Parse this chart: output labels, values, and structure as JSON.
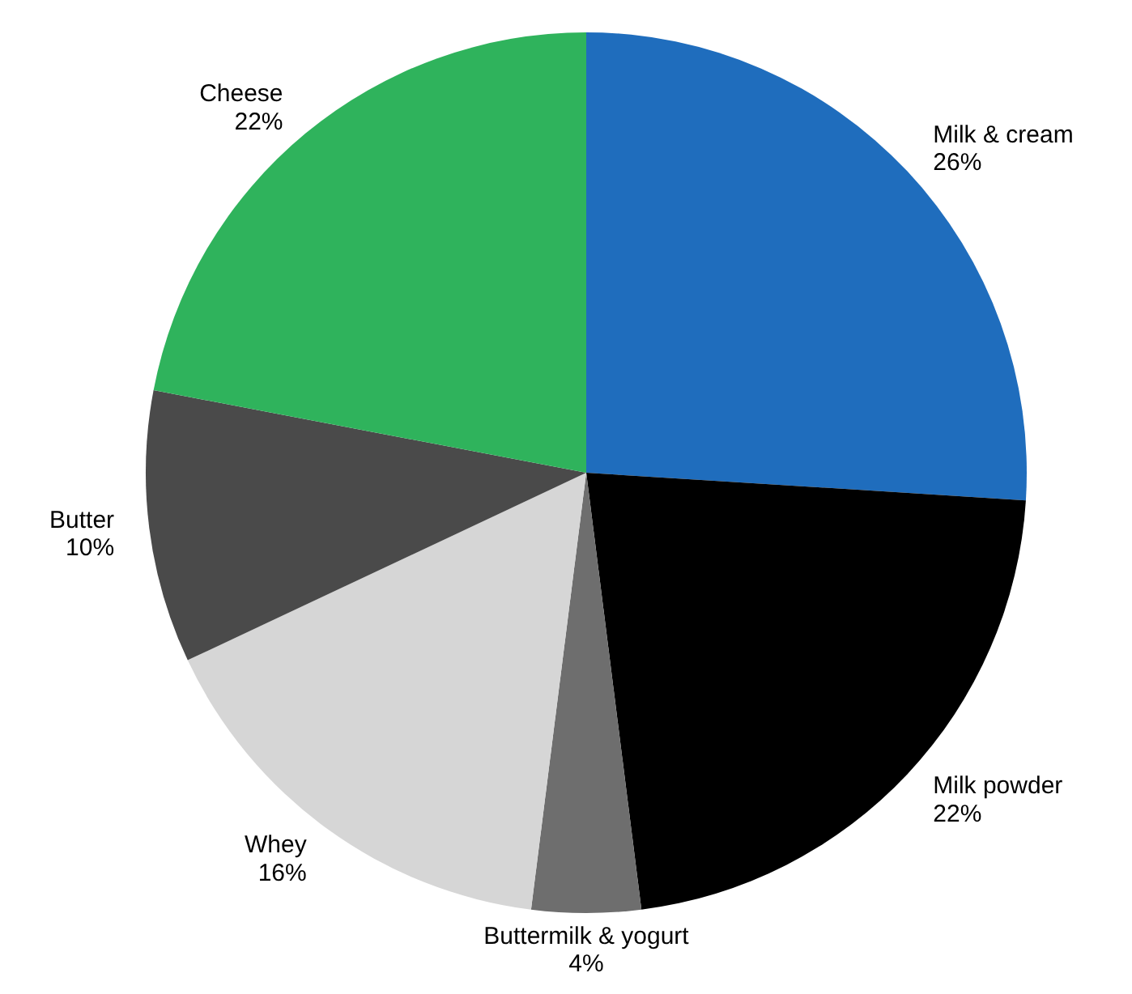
{
  "chart_data": {
    "type": "pie",
    "categories": [
      "Milk & cream",
      "Milk powder",
      "Buttermilk & yogurt",
      "Whey",
      "Butter",
      "Cheese"
    ],
    "values": [
      26,
      22,
      4,
      16,
      10,
      22
    ],
    "colors": [
      "#1f6dbd",
      "#000000",
      "#6e6e6e",
      "#d6d6d6",
      "#4a4a4a",
      "#2fb35c"
    ],
    "value_labels": [
      "26%",
      "22%",
      "4%",
      "16%",
      "10%",
      "22%"
    ]
  }
}
